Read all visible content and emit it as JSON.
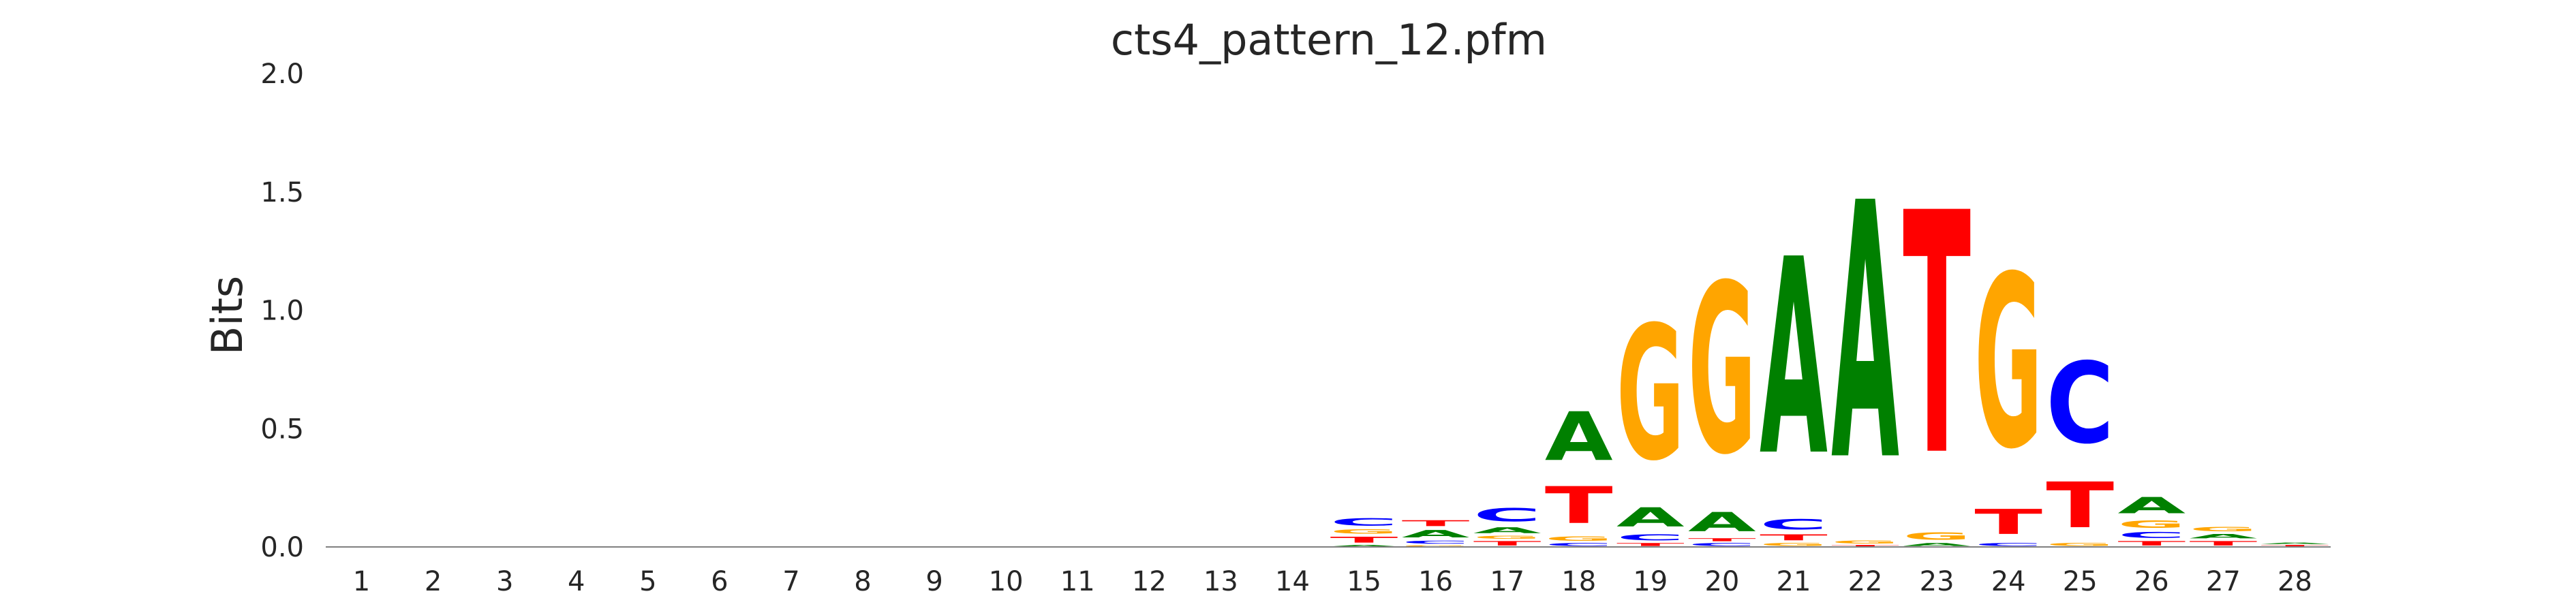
{
  "chart_data": {
    "type": "sequence-logo",
    "title": "cts4_pattern_12.pfm",
    "ylabel": "Bits",
    "xlabel": "",
    "ylim": [
      0,
      2.0
    ],
    "yticks": [
      "0.0",
      "0.5",
      "1.0",
      "1.5",
      "2.0"
    ],
    "ytick_values": [
      0,
      0.5,
      1.0,
      1.5,
      2.0
    ],
    "categories": [
      "1",
      "2",
      "3",
      "4",
      "5",
      "6",
      "7",
      "8",
      "9",
      "10",
      "11",
      "12",
      "13",
      "14",
      "15",
      "16",
      "17",
      "18",
      "19",
      "20",
      "21",
      "22",
      "23",
      "24",
      "25",
      "26",
      "27",
      "28"
    ],
    "colors": {
      "A": "#008000",
      "C": "#0000ff",
      "G": "#ffa500",
      "T": "#ff0000",
      "axis": "#808080"
    },
    "positions": [
      {
        "pos": "1",
        "letters": []
      },
      {
        "pos": "2",
        "letters": []
      },
      {
        "pos": "3",
        "letters": []
      },
      {
        "pos": "4",
        "letters": []
      },
      {
        "pos": "5",
        "letters": []
      },
      {
        "pos": "6",
        "letters": []
      },
      {
        "pos": "7",
        "letters": []
      },
      {
        "pos": "8",
        "letters": []
      },
      {
        "pos": "9",
        "letters": []
      },
      {
        "pos": "10",
        "letters": []
      },
      {
        "pos": "11",
        "letters": []
      },
      {
        "pos": "12",
        "letters": []
      },
      {
        "pos": "13",
        "letters": []
      },
      {
        "pos": "14",
        "letters": []
      },
      {
        "pos": "15",
        "letters": [
          {
            "base": "A",
            "bits": 0.01
          },
          {
            "base": "T",
            "bits": 0.04
          },
          {
            "base": "G",
            "bits": 0.03
          },
          {
            "base": "C",
            "bits": 0.05
          }
        ]
      },
      {
        "pos": "16",
        "letters": [
          {
            "base": "G",
            "bits": 0.01
          },
          {
            "base": "C",
            "bits": 0.02
          },
          {
            "base": "A",
            "bits": 0.05
          },
          {
            "base": "T",
            "bits": 0.04
          }
        ]
      },
      {
        "pos": "17",
        "letters": [
          {
            "base": "T",
            "bits": 0.03
          },
          {
            "base": "G",
            "bits": 0.02
          },
          {
            "base": "A",
            "bits": 0.04
          },
          {
            "base": "C",
            "bits": 0.09
          }
        ]
      },
      {
        "pos": "18",
        "letters": [
          {
            "base": "C",
            "bits": 0.02
          },
          {
            "base": "G",
            "bits": 0.03
          },
          {
            "base": "T",
            "bits": 0.25
          },
          {
            "base": "A",
            "bits": 0.33
          }
        ]
      },
      {
        "pos": "19",
        "letters": [
          {
            "base": "T",
            "bits": 0.02
          },
          {
            "base": "C",
            "bits": 0.04
          },
          {
            "base": "A",
            "bits": 0.13
          },
          {
            "base": "G",
            "bits": 0.91
          }
        ]
      },
      {
        "pos": "20",
        "letters": [
          {
            "base": "C",
            "bits": 0.02
          },
          {
            "base": "T",
            "bits": 0.02
          },
          {
            "base": "A",
            "bits": 0.13
          },
          {
            "base": "G",
            "bits": 1.15
          }
        ]
      },
      {
        "pos": "21",
        "letters": [
          {
            "base": "G",
            "bits": 0.02
          },
          {
            "base": "T",
            "bits": 0.04
          },
          {
            "base": "C",
            "bits": 0.07
          },
          {
            "base": "A",
            "bits": 1.33
          }
        ]
      },
      {
        "pos": "22",
        "letters": [
          {
            "base": "T",
            "bits": 0.01
          },
          {
            "base": "G",
            "bits": 0.02
          },
          {
            "base": "A",
            "bits": 1.74
          }
        ]
      },
      {
        "pos": "23",
        "letters": [
          {
            "base": "A",
            "bits": 0.02
          },
          {
            "base": "G",
            "bits": 0.05
          },
          {
            "base": "T",
            "bits": 1.64
          }
        ]
      },
      {
        "pos": "24",
        "letters": [
          {
            "base": "C",
            "bits": 0.02
          },
          {
            "base": "T",
            "bits": 0.17
          },
          {
            "base": "G",
            "bits": 1.17
          }
        ]
      },
      {
        "pos": "25",
        "letters": [
          {
            "base": "G",
            "bits": 0.02
          },
          {
            "base": "T",
            "bits": 0.31
          },
          {
            "base": "C",
            "bits": 0.55
          }
        ]
      },
      {
        "pos": "26",
        "letters": [
          {
            "base": "T",
            "bits": 0.03
          },
          {
            "base": "C",
            "bits": 0.04
          },
          {
            "base": "G",
            "bits": 0.05
          },
          {
            "base": "A",
            "bits": 0.11
          }
        ]
      },
      {
        "pos": "27",
        "letters": [
          {
            "base": "T",
            "bits": 0.03
          },
          {
            "base": "A",
            "bits": 0.03
          },
          {
            "base": "G",
            "bits": 0.03
          }
        ]
      },
      {
        "pos": "28",
        "letters": [
          {
            "base": "T",
            "bits": 0.01
          },
          {
            "base": "A",
            "bits": 0.01
          }
        ]
      }
    ]
  }
}
